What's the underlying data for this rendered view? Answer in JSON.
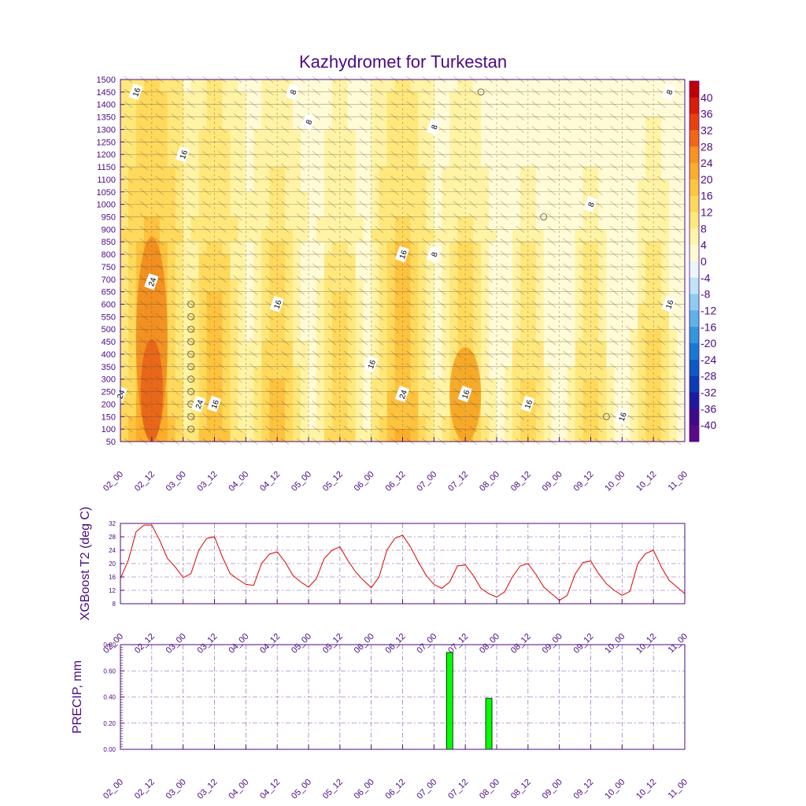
{
  "chart_data": [
    {
      "type": "heatmap",
      "title": "Kazhydromet for Turkestan",
      "xlabel": "",
      "ylabel": "",
      "x_ticks": [
        "02_00",
        "02_12",
        "03_00",
        "03_12",
        "04_00",
        "04_12",
        "05_00",
        "05_12",
        "06_00",
        "06_12",
        "07_00",
        "07_12",
        "08_00",
        "08_12",
        "09_00",
        "09_12",
        "10_00",
        "10_12",
        "11_00"
      ],
      "y_ticks": [
        1500,
        1450,
        1400,
        1350,
        1300,
        1250,
        1200,
        1150,
        1100,
        1050,
        1000,
        950,
        900,
        850,
        800,
        750,
        700,
        650,
        600,
        550,
        500,
        450,
        400,
        350,
        300,
        250,
        200,
        150,
        100,
        50
      ],
      "ylim": [
        50,
        1500
      ],
      "colorbar": {
        "levels": [
          40,
          36,
          32,
          28,
          24,
          20,
          16,
          12,
          8,
          4,
          0,
          -4,
          -8,
          -12,
          -16,
          -20,
          -24,
          -28,
          -32,
          -36,
          -40
        ],
        "colors": [
          "#c00000",
          "#d81e05",
          "#e8420c",
          "#f26716",
          "#f7931e",
          "#fbae2a",
          "#fcc640",
          "#fdd95a",
          "#feea7a",
          "#fff4a8",
          "#fffbd0",
          "#eaf6fb",
          "#bfe4f5",
          "#8fcdee",
          "#5eb3e6",
          "#3297dc",
          "#157bd1",
          "#0a5cc4",
          "#0a3cb4",
          "#1d1aa0",
          "#3f0a86",
          "#5a0a84"
        ]
      },
      "contour_labels": [
        {
          "value": "16",
          "time": "02_06",
          "level": 1450
        },
        {
          "value": "8",
          "time": "04_18",
          "level": 1450
        },
        {
          "value": "8",
          "time": "05_00",
          "level": 1330
        },
        {
          "value": "16",
          "time": "03_00",
          "level": 1200
        },
        {
          "value": "8",
          "time": "07_00",
          "level": 1310
        },
        {
          "value": "8",
          "time": "09_12",
          "level": 1000
        },
        {
          "value": "8",
          "time": "10_18",
          "level": 1450
        },
        {
          "value": "16",
          "time": "06_12",
          "level": 800
        },
        {
          "value": "8",
          "time": "07_00",
          "level": 800
        },
        {
          "value": "24",
          "time": "02_12",
          "level": 690
        },
        {
          "value": "16",
          "time": "04_12",
          "level": 600
        },
        {
          "value": "16",
          "time": "10_18",
          "level": 600
        },
        {
          "value": "16",
          "time": "06_00",
          "level": 360
        },
        {
          "value": "24",
          "time": "02_00",
          "level": 240
        },
        {
          "value": "24",
          "time": "06_12",
          "level": 240
        },
        {
          "value": "16",
          "time": "07_12",
          "level": 240
        },
        {
          "value": "24",
          "time": "03_06",
          "level": 200
        },
        {
          "value": "16",
          "time": "03_12",
          "level": 200
        },
        {
          "value": "16",
          "time": "08_12",
          "level": 200
        },
        {
          "value": "16",
          "time": "10_00",
          "level": 150
        }
      ]
    },
    {
      "type": "line",
      "ylabel": "XGBoost T2 (deg C)",
      "ylim": [
        8,
        32
      ],
      "y_ticks": [
        8,
        12,
        16,
        20,
        24,
        28,
        32
      ],
      "x_ticks": [
        "02_00",
        "02_12",
        "03_00",
        "03_12",
        "04_00",
        "04_12",
        "05_00",
        "05_12",
        "06_00",
        "06_12",
        "07_00",
        "07_12",
        "08_00",
        "08_12",
        "09_00",
        "09_12",
        "10_00",
        "10_12",
        "11_00"
      ],
      "x": [
        0,
        3,
        6,
        9,
        12,
        15,
        18,
        21,
        24,
        27,
        30,
        33,
        36,
        39,
        42,
        45,
        48,
        51,
        54,
        57,
        60,
        63,
        66,
        69,
        72,
        75,
        78,
        81,
        84,
        87,
        90,
        93,
        96,
        99,
        102,
        105,
        108,
        111,
        114,
        117,
        120,
        123,
        126,
        129,
        132,
        135,
        138,
        141,
        144,
        147,
        150,
        153,
        156,
        159,
        162,
        165,
        168,
        171,
        174,
        177,
        180,
        183,
        186,
        189,
        192,
        195,
        198,
        201,
        204,
        207,
        210,
        213,
        216
      ],
      "values": [
        15.5,
        21,
        29.5,
        31.5,
        31.5,
        27,
        21.5,
        19,
        15.8,
        17,
        24,
        27.5,
        28,
        22,
        17,
        15.3,
        13.8,
        13.5,
        20,
        22.8,
        23.5,
        20.5,
        16.5,
        14.5,
        13,
        15.5,
        21.5,
        24,
        25,
        21,
        17.5,
        15,
        12.8,
        16,
        24,
        27.5,
        28.5,
        25,
        20.5,
        16.5,
        13.8,
        12.6,
        14.5,
        19.3,
        19.6,
        16.5,
        12.6,
        11,
        10,
        11.5,
        16,
        19.3,
        20,
        16.8,
        13,
        11,
        9,
        10.5,
        16.8,
        20.3,
        20.8,
        17,
        14,
        12,
        10.5,
        11.7,
        20,
        23,
        24,
        19,
        15,
        13,
        11
      ],
      "series_color": "#e00000"
    },
    {
      "type": "bar",
      "ylabel": "PRECIP, mm",
      "ylim": [
        0,
        0.8
      ],
      "y_ticks": [
        "0.00",
        "0.20",
        "0.40",
        "0.60",
        "0.80"
      ],
      "x_ticks": [
        "02_00",
        "02_12",
        "03_00",
        "03_12",
        "04_00",
        "04_12",
        "05_00",
        "05_12",
        "06_00",
        "06_12",
        "07_00",
        "07_12",
        "08_00",
        "08_12",
        "09_00",
        "09_12",
        "10_00",
        "10_12",
        "11_00"
      ],
      "bars": [
        {
          "time_hours": 126,
          "value": 0.74
        },
        {
          "time_hours": 141,
          "value": 0.39
        }
      ],
      "bar_color": "#00ff00"
    }
  ]
}
